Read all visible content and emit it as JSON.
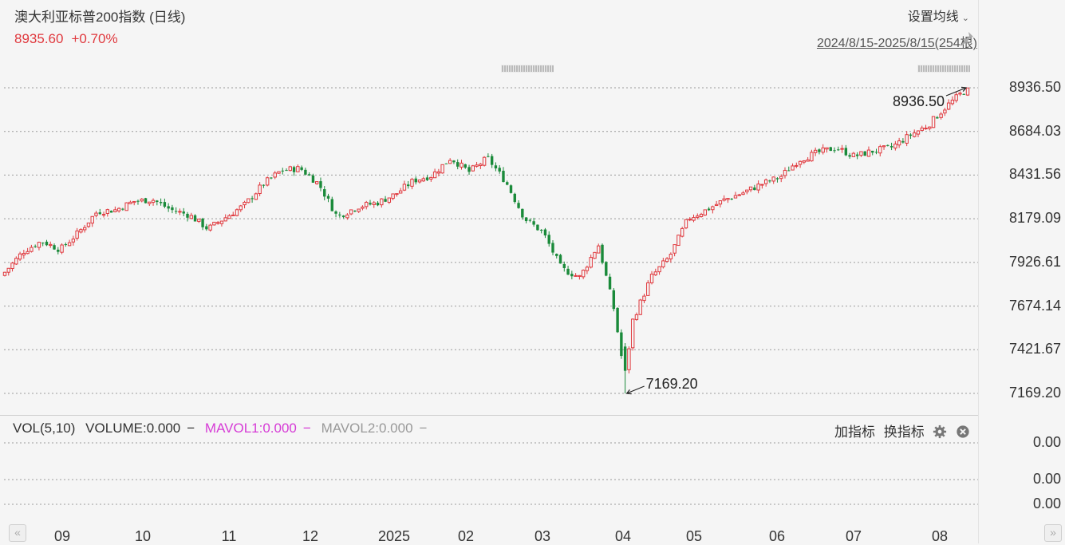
{
  "header": {
    "title": "澳大利亚标普200指数 (日线)",
    "price": "8935.60",
    "change": "+0.70%",
    "ma_setting_label": "设置均线",
    "date_range": "2024/8/15-2025/8/15(254根)"
  },
  "volume_panel": {
    "title": "VOL(5,10)",
    "volume_label": "VOLUME:0.000",
    "mavol1_label": "MAVOL1:0.000",
    "mavol2_label": "MAVOL2:0.000",
    "add_indicator_label": "加指标",
    "switch_indicator_label": "换指标",
    "y_ticks": [
      "0.00",
      "0.00",
      "0.00"
    ]
  },
  "colors": {
    "up": "#e0393e",
    "down": "#1a8a3a",
    "mavol1": "#d63bd6",
    "mavol2": "#999999",
    "grid": "#9a9a9a"
  },
  "chart_data": {
    "type": "candlestick",
    "y_ticks": [
      "8936.50",
      "8684.03",
      "8431.56",
      "8179.09",
      "7926.61",
      "7674.14",
      "7421.67",
      "7169.20"
    ],
    "ylim": [
      7169.2,
      8936.5
    ],
    "x_ticks": [
      "09",
      "10",
      "11",
      "12",
      "2025",
      "02",
      "03",
      "04",
      "05",
      "06",
      "07",
      "08"
    ],
    "annotations": [
      {
        "label": "8936.50",
        "value": 8936.5,
        "type": "high"
      },
      {
        "label": "7169.20",
        "value": 7169.2,
        "type": "low"
      }
    ],
    "close_path": {
      "x": [
        "2024-08-15",
        "2024-08-22",
        "2024-08-29",
        "2024-09-05",
        "2024-09-12",
        "2024-09-19",
        "2024-09-26",
        "2024-10-03",
        "2024-10-10",
        "2024-10-17",
        "2024-10-24",
        "2024-10-31",
        "2024-11-07",
        "2024-11-14",
        "2024-11-21",
        "2024-11-28",
        "2024-12-05",
        "2024-12-12",
        "2024-12-19",
        "2024-12-27",
        "2025-01-03",
        "2025-01-10",
        "2025-01-17",
        "2025-01-24",
        "2025-01-31",
        "2025-02-07",
        "2025-02-14",
        "2025-02-21",
        "2025-02-28",
        "2025-03-07",
        "2025-03-14",
        "2025-03-21",
        "2025-03-28",
        "2025-04-03",
        "2025-04-07",
        "2025-04-10",
        "2025-04-17",
        "2025-04-24",
        "2025-05-01",
        "2025-05-08",
        "2025-05-15",
        "2025-05-22",
        "2025-05-29",
        "2025-06-05",
        "2025-06-12",
        "2025-06-19",
        "2025-06-26",
        "2025-07-03",
        "2025-07-10",
        "2025-07-17",
        "2025-07-24",
        "2025-07-31",
        "2025-08-07",
        "2025-08-15"
      ],
      "y": [
        7870,
        7990,
        8050,
        8000,
        8100,
        8220,
        8230,
        8280,
        8290,
        8230,
        8200,
        8120,
        8190,
        8260,
        8380,
        8460,
        8470,
        8380,
        8190,
        8250,
        8270,
        8320,
        8400,
        8430,
        8530,
        8450,
        8530,
        8390,
        8180,
        8100,
        7890,
        7840,
        8030,
        7650,
        7260,
        7590,
        7840,
        7960,
        8180,
        8230,
        8290,
        8330,
        8380,
        8420,
        8520,
        8560,
        8590,
        8540,
        8570,
        8590,
        8660,
        8720,
        8830,
        8935.6
      ]
    }
  }
}
